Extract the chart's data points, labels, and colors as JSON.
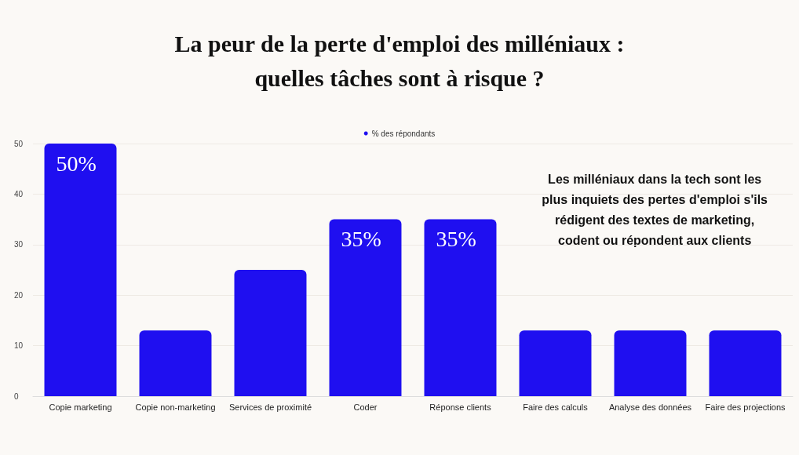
{
  "chart_data": {
    "type": "bar",
    "title": "La peur de la perte d'emploi des milléniaux :\nquelles tâches sont à risque ?",
    "categories": [
      "Copie marketing",
      "Copie non-marketing",
      "Services de proximité",
      "Coder",
      "Réponse clients",
      "Faire des calculs",
      "Analyse des données",
      "Faire des projections"
    ],
    "series": [
      {
        "name": "% des répondants",
        "color": "#1f0ff0",
        "values": [
          50,
          13,
          25,
          35,
          35,
          13,
          13,
          13
        ],
        "value_labels": [
          "50%",
          null,
          null,
          "35%",
          "35%",
          null,
          null,
          null
        ]
      }
    ],
    "ylim": [
      0,
      50
    ],
    "yticks": [
      0,
      10,
      20,
      30,
      40,
      50
    ],
    "grid": "y",
    "legend": "top",
    "annotations": [
      "Les milléniaux dans la tech sont les\nplus inquiets des pertes d'emploi s'ils\nrédigent des textes de marketing,\ncodent ou répondent aux clients"
    ]
  }
}
